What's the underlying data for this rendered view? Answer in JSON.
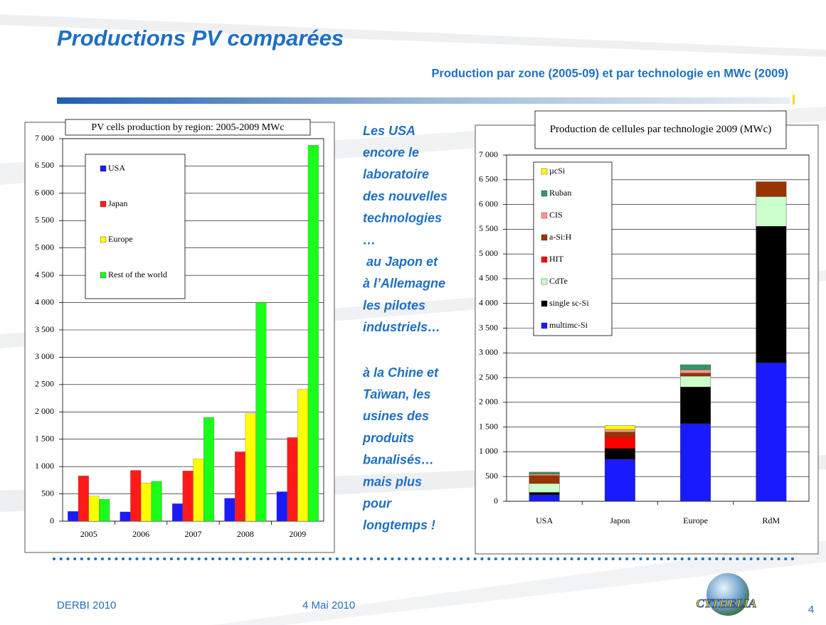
{
  "header": {
    "title": "Productions PV comparées",
    "subtitle": "Production par zone  (2005-09) et par technologie en MWc (2009)"
  },
  "chart_data": [
    {
      "type": "bar",
      "title": "PV cells production by region: 2005-2009 MWc",
      "categories": [
        "2005",
        "2006",
        "2007",
        "2008",
        "2009"
      ],
      "series": [
        {
          "name": "USA",
          "color": "#1a1aff",
          "values": [
            180,
            170,
            320,
            420,
            540
          ]
        },
        {
          "name": "Japan",
          "color": "#ff1a1a",
          "values": [
            830,
            930,
            920,
            1270,
            1530
          ]
        },
        {
          "name": "Europe",
          "color": "#ffff00",
          "values": [
            460,
            700,
            1140,
            1970,
            2410
          ]
        },
        {
          "name": "Rest of the world",
          "color": "#1aff1a",
          "values": [
            400,
            730,
            1900,
            4000,
            6880
          ]
        }
      ],
      "ylim": [
        0,
        7000
      ],
      "yticks": [
        0,
        500,
        {
          "value": 1000,
          "label": "1 000"
        },
        {
          "value": 1500,
          "label": "1 500"
        },
        {
          "value": 2000,
          "label": "2 000"
        },
        {
          "value": 2500,
          "label": "2 500"
        },
        {
          "value": 3000,
          "label": "3 000"
        },
        {
          "value": 3500,
          "label": "3 500"
        },
        {
          "value": 4000,
          "label": "4 000"
        },
        {
          "value": 4500,
          "label": "4 500"
        },
        {
          "value": 5000,
          "label": "5 000"
        },
        {
          "value": 5500,
          "label": "5 500"
        },
        {
          "value": 6000,
          "label": "6 000"
        },
        {
          "value": 6500,
          "label": "6 500"
        },
        {
          "value": 7000,
          "label": "7 000"
        }
      ],
      "grid": true,
      "legend": "upper left"
    },
    {
      "type": "stacked_bar",
      "title": "Production de cellules par technologie 2009 (MWc)",
      "categories": [
        "USA",
        "Japon",
        "Europe",
        "RdM"
      ],
      "series": [
        {
          "name": "multimc-Si",
          "color": "#1a1aff",
          "values": [
            130,
            850,
            1570,
            2800
          ]
        },
        {
          "name": "single sc-Si",
          "color": "#000000",
          "values": [
            50,
            220,
            740,
            2760
          ]
        },
        {
          "name": "CdTe",
          "color": "#ccffcc",
          "values": [
            180,
            0,
            220,
            600
          ]
        },
        {
          "name": "HIT",
          "color": "#ff0000",
          "values": [
            0,
            230,
            0,
            0
          ]
        },
        {
          "name": "a-Si:H",
          "color": "#993300",
          "values": [
            160,
            100,
            60,
            300
          ]
        },
        {
          "name": "CIS",
          "color": "#ff9999",
          "values": [
            30,
            50,
            70,
            0
          ]
        },
        {
          "name": "Ruban",
          "color": "#339966",
          "values": [
            30,
            0,
            100,
            0
          ]
        },
        {
          "name": "µcSi",
          "color": "#ffff00",
          "values": [
            10,
            80,
            0,
            0
          ]
        }
      ],
      "ylim": [
        0,
        7000
      ],
      "yticks": [
        0,
        500,
        {
          "value": 1000,
          "label": "1 000"
        },
        {
          "value": 1500,
          "label": "1 500"
        },
        {
          "value": 2000,
          "label": "2 000"
        },
        {
          "value": 2500,
          "label": "2 500"
        },
        {
          "value": 3000,
          "label": "3 000"
        },
        {
          "value": 3500,
          "label": "3 500"
        },
        {
          "value": 4000,
          "label": "4 000"
        },
        {
          "value": 4500,
          "label": "4 500"
        },
        {
          "value": 5000,
          "label": "5 000"
        },
        {
          "value": 5500,
          "label": "5 500"
        },
        {
          "value": 6000,
          "label": "6 000"
        },
        {
          "value": 6500,
          "label": "6 500"
        },
        {
          "value": 7000,
          "label": "7 000"
        }
      ],
      "grid": true,
      "legend": "upper left"
    }
  ],
  "commentary": {
    "paragraphs": [
      [
        "Les USA",
        "encore le",
        "laboratoire",
        "des nouvelles",
        "technologies",
        "…",
        " au Japon et",
        "à l’Allemagne",
        "les pilotes",
        "industriels…"
      ],
      [
        "à la Chine et",
        "Taïwan, les",
        "usines des",
        "produits",
        "banalisés…",
        "mais plus",
        "pour",
        "longtemps !"
      ]
    ]
  },
  "footer": {
    "event": "DERBI 2010",
    "date": "4 Mai 2010",
    "logo": "CYTHELIA",
    "page": "4"
  }
}
